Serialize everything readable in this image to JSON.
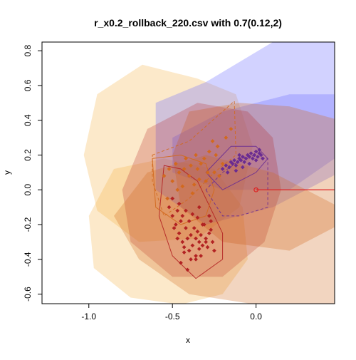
{
  "chart_data": {
    "type": "scatter",
    "title": "r_x0.2_rollback_220.csv with 0.7(0.12,2)",
    "xlabel": "x",
    "ylabel": "y",
    "xlim": [
      -1.28,
      0.47
    ],
    "ylim": [
      -0.655,
      0.85
    ],
    "xticks": [
      {
        "value": -1.0,
        "label": "-1.0"
      },
      {
        "value": -0.5,
        "label": "-0.5"
      },
      {
        "value": 0.0,
        "label": "0.0"
      }
    ],
    "yticks": [
      {
        "value": -0.6,
        "label": "-0.6"
      },
      {
        "value": -0.4,
        "label": "-0.4"
      },
      {
        "value": -0.2,
        "label": "-0.2"
      },
      {
        "value": 0.0,
        "label": "0.0"
      },
      {
        "value": 0.2,
        "label": "0.2"
      },
      {
        "value": 0.4,
        "label": "0.4"
      },
      {
        "value": 0.6,
        "label": "0.6"
      },
      {
        "value": 0.8,
        "label": "0.8"
      }
    ],
    "grid": false,
    "colors": {
      "red": "#b22222",
      "orange": "#d2691e",
      "purple": "#6a2c91",
      "light_orange": "#f5b041",
      "lavender": "#6a6aff",
      "origin_line": "#dd2222"
    },
    "regions": [
      {
        "color": "#f5b041",
        "opacity": 0.28,
        "points": [
          [
            -0.35,
            0.64
          ],
          [
            -0.68,
            0.72
          ],
          [
            -0.95,
            0.55
          ],
          [
            -1.03,
            0.2
          ],
          [
            -0.95,
            -0.12
          ],
          [
            -0.7,
            -0.3
          ],
          [
            -0.35,
            -0.28
          ],
          [
            -0.1,
            -0.1
          ],
          [
            -0.02,
            0.25
          ],
          [
            -0.12,
            0.55
          ]
        ]
      },
      {
        "color": "#f5b041",
        "opacity": 0.28,
        "points": [
          [
            -0.55,
            0.18
          ],
          [
            -0.85,
            0.12
          ],
          [
            -1.0,
            -0.15
          ],
          [
            -0.97,
            -0.45
          ],
          [
            -0.75,
            -0.62
          ],
          [
            -0.45,
            -0.66
          ],
          [
            -0.2,
            -0.6
          ],
          [
            -0.05,
            -0.4
          ],
          [
            -0.08,
            -0.1
          ],
          [
            -0.25,
            0.12
          ]
        ]
      },
      {
        "color": "#6a6aff",
        "opacity": 0.3,
        "points": [
          [
            -0.6,
            0.5
          ],
          [
            -0.3,
            0.62
          ],
          [
            0.1,
            0.85
          ],
          [
            0.5,
            0.85
          ],
          [
            0.5,
            0.1
          ],
          [
            0.1,
            -0.1
          ],
          [
            -0.3,
            -0.2
          ],
          [
            -0.6,
            0.0
          ]
        ]
      },
      {
        "color": "#6a6aff",
        "opacity": 0.3,
        "points": [
          [
            -0.5,
            0.3
          ],
          [
            -0.2,
            0.45
          ],
          [
            0.2,
            0.55
          ],
          [
            0.5,
            0.55
          ],
          [
            0.5,
            0.2
          ],
          [
            0.2,
            0.0
          ],
          [
            -0.2,
            0.0
          ],
          [
            -0.5,
            0.1
          ]
        ]
      },
      {
        "color": "#d2691e",
        "opacity": 0.3,
        "points": [
          [
            -0.4,
            0.45
          ],
          [
            -0.1,
            0.5
          ],
          [
            0.2,
            0.48
          ],
          [
            0.5,
            0.4
          ],
          [
            0.5,
            -0.2
          ],
          [
            0.2,
            -0.35
          ],
          [
            -0.2,
            -0.3
          ],
          [
            -0.45,
            -0.1
          ],
          [
            -0.5,
            0.2
          ]
        ]
      },
      {
        "color": "#b22222",
        "opacity": 0.25,
        "points": [
          [
            -0.35,
            0.5
          ],
          [
            -0.05,
            0.45
          ],
          [
            0.1,
            0.3
          ],
          [
            0.15,
            0.0
          ],
          [
            0.05,
            -0.3
          ],
          [
            -0.2,
            -0.5
          ],
          [
            -0.5,
            -0.5
          ],
          [
            -0.75,
            -0.3
          ],
          [
            -0.8,
            0.0
          ],
          [
            -0.65,
            0.35
          ]
        ]
      },
      {
        "color": "#d2691e",
        "opacity": 0.28,
        "points": [
          [
            -0.65,
            0.1
          ],
          [
            -0.3,
            0.2
          ],
          [
            0.1,
            0.1
          ],
          [
            0.5,
            -0.1
          ],
          [
            0.5,
            -0.66
          ],
          [
            0.0,
            -0.66
          ],
          [
            -0.4,
            -0.6
          ],
          [
            -0.7,
            -0.4
          ],
          [
            -0.85,
            -0.15
          ]
        ]
      }
    ],
    "hulls": [
      {
        "color": "#d2691e",
        "dashed": true,
        "points": [
          [
            -0.62,
            0.2
          ],
          [
            -0.4,
            0.28
          ],
          [
            -0.13,
            0.51
          ],
          [
            -0.12,
            0.2
          ],
          [
            -0.25,
            0.1
          ],
          [
            -0.4,
            -0.05
          ],
          [
            -0.55,
            -0.15
          ],
          [
            -0.62,
            0.05
          ]
        ]
      },
      {
        "color": "#b22222",
        "dashed": false,
        "points": [
          [
            -0.55,
            0.14
          ],
          [
            -0.45,
            0.12
          ],
          [
            -0.35,
            0.05
          ],
          [
            -0.2,
            -0.25
          ],
          [
            -0.2,
            -0.4
          ],
          [
            -0.36,
            -0.51
          ],
          [
            -0.5,
            -0.38
          ],
          [
            -0.58,
            -0.15
          ]
        ]
      },
      {
        "color": "#d2691e",
        "dashed": false,
        "points": [
          [
            -0.62,
            0.18
          ],
          [
            -0.45,
            0.2
          ],
          [
            -0.3,
            0.15
          ],
          [
            -0.25,
            0.0
          ],
          [
            -0.3,
            -0.15
          ],
          [
            -0.45,
            -0.2
          ],
          [
            -0.6,
            -0.1
          ]
        ]
      },
      {
        "color": "#6a2c91",
        "dashed": false,
        "points": [
          [
            -0.3,
            0.1
          ],
          [
            -0.15,
            0.25
          ],
          [
            0.0,
            0.25
          ],
          [
            0.07,
            0.18
          ],
          [
            0.0,
            0.1
          ],
          [
            -0.1,
            0.05
          ],
          [
            -0.2,
            0.0
          ]
        ]
      },
      {
        "color": "#6a2c91",
        "dashed": true,
        "points": [
          [
            -0.3,
            0.0
          ],
          [
            -0.2,
            -0.15
          ],
          [
            -0.1,
            -0.15
          ],
          [
            0.07,
            -0.1
          ],
          [
            0.07,
            0.18
          ],
          [
            -0.05,
            0.2
          ],
          [
            -0.2,
            0.1
          ]
        ]
      }
    ],
    "series": [
      {
        "color": "#b22222",
        "marker": "diamond",
        "x": [
          -0.52,
          -0.5,
          -0.48,
          -0.47,
          -0.46,
          -0.45,
          -0.44,
          -0.42,
          -0.41,
          -0.4,
          -0.39,
          -0.38,
          -0.36,
          -0.35,
          -0.34,
          -0.33,
          -0.32,
          -0.3,
          -0.29,
          -0.28,
          -0.27,
          -0.26,
          -0.25,
          -0.5,
          -0.49,
          -0.47,
          -0.46,
          -0.44,
          -0.43,
          -0.42,
          -0.4,
          -0.39,
          -0.37,
          -0.36,
          -0.35,
          -0.34,
          -0.33,
          -0.31,
          -0.3,
          -0.28,
          -0.27,
          -0.45,
          -0.43,
          -0.41,
          -0.38,
          -0.36,
          -0.34,
          -0.32
        ],
        "y": [
          -0.1,
          -0.15,
          -0.2,
          -0.12,
          -0.25,
          -0.18,
          -0.3,
          -0.22,
          -0.28,
          -0.35,
          -0.26,
          -0.32,
          -0.4,
          -0.24,
          -0.3,
          -0.38,
          -0.2,
          -0.28,
          -0.33,
          -0.25,
          -0.18,
          -0.3,
          -0.35,
          -0.05,
          -0.22,
          -0.28,
          -0.08,
          -0.15,
          -0.33,
          -0.12,
          -0.18,
          -0.4,
          -0.22,
          -0.28,
          -0.16,
          -0.34,
          -0.26,
          -0.2,
          -0.3,
          -0.15,
          -0.23,
          -0.42,
          -0.36,
          -0.46,
          -0.14,
          -0.38,
          -0.1,
          -0.32
        ]
      },
      {
        "color": "#d2691e",
        "marker": "diamond",
        "x": [
          -0.55,
          -0.52,
          -0.5,
          -0.48,
          -0.46,
          -0.44,
          -0.42,
          -0.4,
          -0.38,
          -0.36,
          -0.35,
          -0.33,
          -0.3,
          -0.28,
          -0.25,
          -0.23,
          -0.2,
          -0.18,
          -0.15,
          -0.53,
          -0.47,
          -0.43,
          -0.39,
          -0.37,
          -0.34,
          -0.31,
          -0.29,
          -0.26,
          -0.24,
          -0.22
        ],
        "y": [
          0.08,
          0.12,
          0.05,
          0.15,
          0.1,
          0.02,
          0.18,
          0.08,
          -0.02,
          0.2,
          0.12,
          0.15,
          0.05,
          0.22,
          0.1,
          0.25,
          0.15,
          0.3,
          0.35,
          -0.05,
          0.0,
          0.12,
          0.14,
          0.03,
          0.06,
          0.18,
          0.1,
          0.28,
          0.2,
          0.08
        ]
      },
      {
        "color": "#6a2c91",
        "marker": "diamond",
        "x": [
          -0.2,
          -0.18,
          -0.16,
          -0.15,
          -0.14,
          -0.13,
          -0.12,
          -0.11,
          -0.1,
          -0.09,
          -0.08,
          -0.07,
          -0.06,
          -0.05,
          -0.04,
          -0.03,
          -0.02,
          -0.01,
          0.0,
          0.01,
          0.02,
          0.03,
          0.04,
          -0.17,
          -0.12,
          -0.08,
          -0.04,
          0.0,
          0.02,
          -0.1
        ],
        "y": [
          0.12,
          0.14,
          0.13,
          0.16,
          0.15,
          0.17,
          0.14,
          0.16,
          0.18,
          0.17,
          0.19,
          0.16,
          0.18,
          0.2,
          0.19,
          0.21,
          0.18,
          0.2,
          0.22,
          0.19,
          0.21,
          0.2,
          0.18,
          0.1,
          0.11,
          0.13,
          0.15,
          0.17,
          0.23,
          0.2
        ]
      }
    ],
    "origin_marker": {
      "x": 0.0,
      "y": 0.0,
      "color": "#dd2222"
    },
    "origin_line": {
      "x0": 0.0,
      "y0": 0.0,
      "x1": 0.47,
      "y1": 0.0,
      "color": "#dd2222"
    }
  }
}
